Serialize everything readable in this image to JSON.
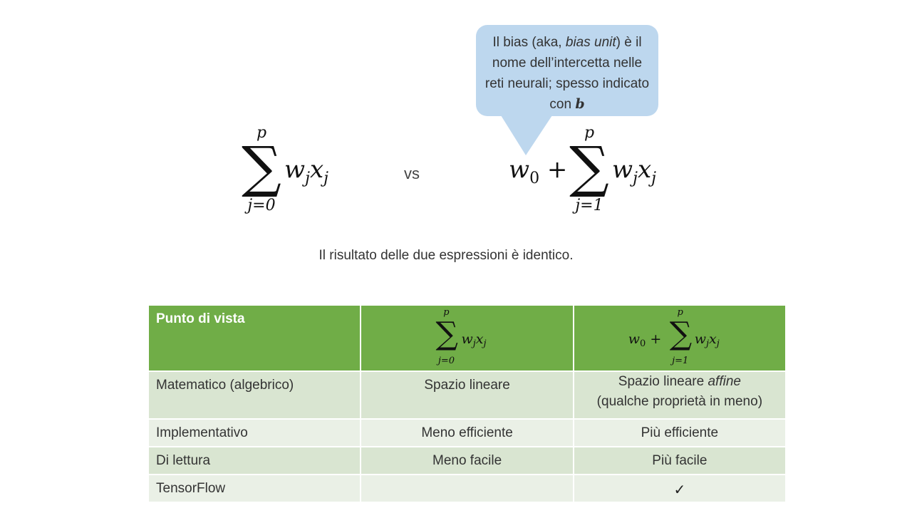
{
  "bubble": {
    "text_before": "Il bias (aka, ",
    "text_italic": "bias unit",
    "text_after": ") è il nome dell’intercetta nelle reti neurali; spesso indicato con ",
    "symbol": "b",
    "color": "#bdd7ee"
  },
  "formula_left": {
    "upper": "p",
    "lower": "j=0",
    "term": "w",
    "term_sub": "j",
    "term2": "x",
    "term2_sub": "j"
  },
  "vs_label": "vs",
  "formula_right": {
    "prefix": "w",
    "prefix_sub": "0",
    "plus": "+",
    "upper": "p",
    "lower": "j=1",
    "term": "w",
    "term_sub": "j",
    "term2": "x",
    "term2_sub": "j"
  },
  "result_text": "Il risultato delle due espressioni è identico.",
  "table": {
    "header_label": "Punto di vista",
    "header_color": "#70ad47",
    "rows": [
      {
        "label": "Matematico (algebrico)",
        "col1": "Spazio lineare",
        "col2_line1_a": "Spazio lineare ",
        "col2_line1_italic": "affine",
        "col2_line2": "(qualche proprietà in meno)"
      },
      {
        "label": "Implementativo",
        "col1": "Meno efficiente",
        "col2": "Più efficiente"
      },
      {
        "label": "Di lettura",
        "col1": "Meno facile",
        "col2": "Più facile"
      },
      {
        "label": "TensorFlow",
        "col1": "",
        "col2": "✓"
      }
    ]
  }
}
